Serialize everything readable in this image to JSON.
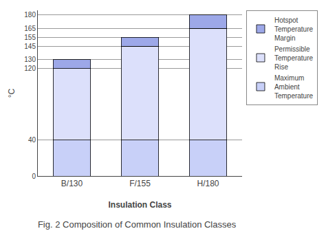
{
  "chart_data": {
    "type": "bar",
    "title": "Fig. 2 Composition of Common Insulation Classes",
    "xlabel": "Insulation Class",
    "ylabel": "°C",
    "categories": [
      "B/130",
      "F/155",
      "H/180"
    ],
    "series": [
      {
        "name": "Maximum\nAmbient\nTemperature",
        "color": "#c8d0f8",
        "values": [
          40,
          40,
          40
        ]
      },
      {
        "name": "Permissible\nTemperature\nRise",
        "color": "#dce0fb",
        "values": [
          80,
          105,
          125
        ]
      },
      {
        "name": "Hotspot\nTemperature\nMargin",
        "color": "#9da8e8",
        "values": [
          10,
          10,
          15
        ]
      }
    ],
    "stacked": true,
    "ylim": [
      0,
      185
    ],
    "yticks": [
      0,
      40,
      120,
      130,
      145,
      155,
      165,
      180
    ],
    "grid": true,
    "legend": "right"
  }
}
